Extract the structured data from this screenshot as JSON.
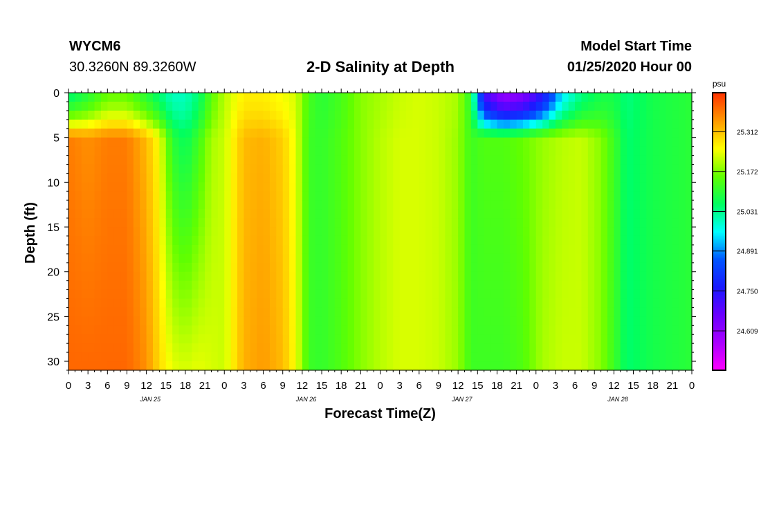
{
  "header": {
    "station": "WYCM6",
    "coordinates": "30.3260N 89.3260W",
    "title": "2-D Salinity at Depth",
    "model_start_label": "Model Start Time",
    "model_start_value": "01/25/2020 Hour 00"
  },
  "chart_data": {
    "type": "heatmap",
    "title": "2-D Salinity at Depth",
    "xlabel": "Forecast Time(Z)",
    "ylabel": "Depth (ft)",
    "x_range_hours": [
      0,
      96
    ],
    "x_tick_labels": [
      "0",
      "3",
      "6",
      "9",
      "12",
      "15",
      "18",
      "21",
      "0",
      "3",
      "6",
      "9",
      "12",
      "15",
      "18",
      "21",
      "0",
      "3",
      "6",
      "9",
      "12",
      "15",
      "18",
      "21",
      "0",
      "3",
      "6",
      "9",
      "12",
      "15",
      "18",
      "21",
      "0"
    ],
    "date_labels": [
      "JAN 25",
      "JAN 26",
      "JAN 27",
      "JAN 28"
    ],
    "ylim": [
      0,
      31
    ],
    "y_ticks": [
      0,
      5,
      10,
      15,
      20,
      25,
      30
    ],
    "y_reversed": true,
    "colorbar": {
      "unit": "psu",
      "range": [
        24.47,
        25.45
      ],
      "ticks": [
        24.609,
        24.75,
        24.891,
        25.031,
        25.172,
        25.312
      ],
      "colors": [
        "#ff00ff",
        "#aa00ff",
        "#6a00ff",
        "#1a1aff",
        "#0055ff",
        "#00ffff",
        "#00ff60",
        "#60ff00",
        "#ffff00",
        "#ff9900",
        "#ff3300"
      ]
    },
    "salinity_profiles": [
      {
        "hour": 0,
        "surface": 25.05,
        "mid": 25.38,
        "deep": 25.4
      },
      {
        "hour": 3,
        "surface": 25.1,
        "mid": 25.36,
        "deep": 25.4
      },
      {
        "hour": 6,
        "surface": 25.16,
        "mid": 25.38,
        "deep": 25.4
      },
      {
        "hour": 9,
        "surface": 25.16,
        "mid": 25.38,
        "deep": 25.4
      },
      {
        "hour": 12,
        "surface": 25.1,
        "mid": 25.32,
        "deep": 25.36
      },
      {
        "hour": 14,
        "surface": 25.05,
        "mid": 25.25,
        "deep": 25.29
      },
      {
        "hour": 16,
        "surface": 25.0,
        "mid": 25.1,
        "deep": 25.24
      },
      {
        "hour": 18,
        "surface": 25.0,
        "mid": 25.06,
        "deep": 25.23
      },
      {
        "hour": 20,
        "surface": 25.05,
        "mid": 25.12,
        "deep": 25.24
      },
      {
        "hour": 22,
        "surface": 25.15,
        "mid": 25.2,
        "deep": 25.23
      },
      {
        "hour": 24,
        "surface": 25.21,
        "mid": 25.22,
        "deep": 25.22
      },
      {
        "hour": 27,
        "surface": 25.27,
        "mid": 25.32,
        "deep": 25.33
      },
      {
        "hour": 30,
        "surface": 25.27,
        "mid": 25.33,
        "deep": 25.35
      },
      {
        "hour": 33,
        "surface": 25.25,
        "mid": 25.3,
        "deep": 25.32
      },
      {
        "hour": 35,
        "surface": 25.23,
        "mid": 25.24,
        "deep": 25.25
      },
      {
        "hour": 37,
        "surface": 25.13,
        "mid": 25.12,
        "deep": 25.12
      },
      {
        "hour": 39,
        "surface": 25.1,
        "mid": 25.11,
        "deep": 25.11
      },
      {
        "hour": 42,
        "surface": 25.13,
        "mid": 25.14,
        "deep": 25.14
      },
      {
        "hour": 45,
        "surface": 25.18,
        "mid": 25.18,
        "deep": 25.18
      },
      {
        "hour": 48,
        "surface": 25.2,
        "mid": 25.21,
        "deep": 25.21
      },
      {
        "hour": 51,
        "surface": 25.22,
        "mid": 25.23,
        "deep": 25.23
      },
      {
        "hour": 54,
        "surface": 25.23,
        "mid": 25.23,
        "deep": 25.23
      },
      {
        "hour": 57,
        "surface": 25.22,
        "mid": 25.22,
        "deep": 25.22
      },
      {
        "hour": 60,
        "surface": 25.2,
        "mid": 25.19,
        "deep": 25.19
      },
      {
        "hour": 62,
        "surface": 25.1,
        "mid": 25.12,
        "deep": 25.12
      },
      {
        "hour": 64,
        "surface": 24.72,
        "mid": 25.14,
        "deep": 25.12
      },
      {
        "hour": 67,
        "surface": 24.6,
        "mid": 25.14,
        "deep": 25.12
      },
      {
        "hour": 70,
        "surface": 24.63,
        "mid": 25.16,
        "deep": 25.14
      },
      {
        "hour": 73,
        "surface": 24.75,
        "mid": 25.19,
        "deep": 25.2
      },
      {
        "hour": 76,
        "surface": 24.95,
        "mid": 25.21,
        "deep": 25.22
      },
      {
        "hour": 79,
        "surface": 25.04,
        "mid": 25.22,
        "deep": 25.22
      },
      {
        "hour": 82,
        "surface": 25.08,
        "mid": 25.18,
        "deep": 25.18
      },
      {
        "hour": 84,
        "surface": 25.08,
        "mid": 25.12,
        "deep": 25.12
      },
      {
        "hour": 86,
        "surface": 25.04,
        "mid": 25.05,
        "deep": 25.05
      },
      {
        "hour": 90,
        "surface": 25.08,
        "mid": 25.08,
        "deep": 25.08
      },
      {
        "hour": 96,
        "surface": 25.1,
        "mid": 25.1,
        "deep": 25.1
      }
    ]
  }
}
